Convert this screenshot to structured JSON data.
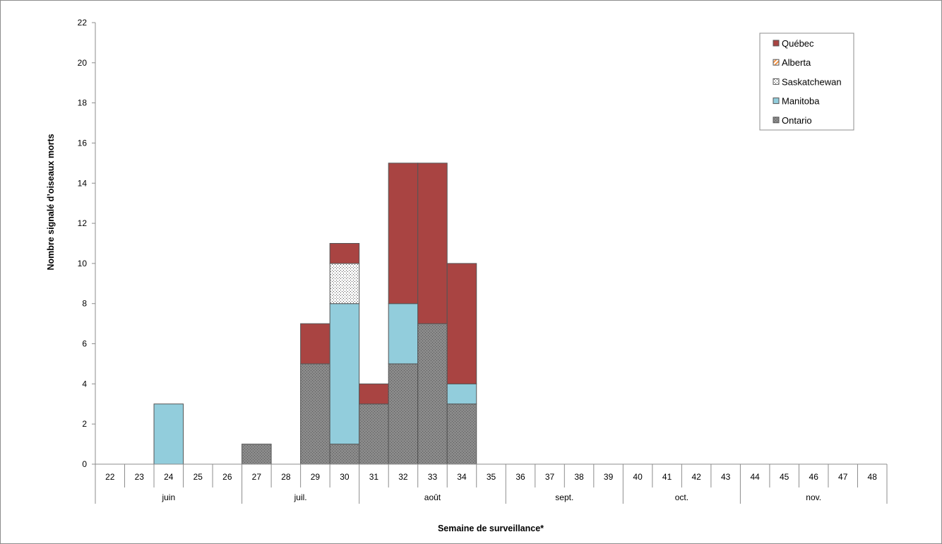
{
  "chart_data": {
    "type": "bar",
    "stacked": true,
    "ylabel": "Nombre signalé d’oiseaux morts",
    "xlabel": "Semaine de surveillance*",
    "ylim": [
      0,
      22
    ],
    "yticks": [
      0,
      2,
      4,
      6,
      8,
      10,
      12,
      14,
      16,
      18,
      20,
      22
    ],
    "grid": false,
    "legend_position": "top-right",
    "categories": [
      "22",
      "23",
      "24",
      "25",
      "26",
      "27",
      "28",
      "29",
      "30",
      "31",
      "32",
      "33",
      "34",
      "35",
      "36",
      "37",
      "38",
      "39",
      "40",
      "41",
      "42",
      "43",
      "44",
      "45",
      "46",
      "47",
      "48"
    ],
    "month_groups": [
      {
        "label": "juin",
        "weeks": [
          "22",
          "23",
          "24",
          "25",
          "26"
        ]
      },
      {
        "label": "juil.",
        "weeks": [
          "27",
          "28",
          "29",
          "30"
        ]
      },
      {
        "label": "août",
        "weeks": [
          "31",
          "32",
          "33",
          "34",
          "35"
        ]
      },
      {
        "label": "sept.",
        "weeks": [
          "36",
          "37",
          "38",
          "39"
        ]
      },
      {
        "label": "oct.",
        "weeks": [
          "40",
          "41",
          "42",
          "43"
        ]
      },
      {
        "label": "nov.",
        "weeks": [
          "44",
          "45",
          "46",
          "47",
          "48"
        ]
      }
    ],
    "series": [
      {
        "name": "Ontario",
        "color": "#8a8a8a",
        "pattern": "dots-dark",
        "values": [
          0,
          0,
          0,
          0,
          0,
          1,
          0,
          5,
          1,
          3,
          5,
          7,
          3,
          0,
          0,
          0,
          0,
          0,
          0,
          0,
          0,
          0,
          0,
          0,
          0,
          0,
          0
        ]
      },
      {
        "name": "Manitoba",
        "color": "#92cddc",
        "pattern": "solid",
        "values": [
          0,
          0,
          3,
          0,
          0,
          0,
          0,
          0,
          7,
          0,
          3,
          0,
          1,
          0,
          0,
          0,
          0,
          0,
          0,
          0,
          0,
          0,
          0,
          0,
          0,
          0,
          0
        ]
      },
      {
        "name": "Saskatchewan",
        "color": "#ffffff",
        "pattern": "dots-light",
        "values": [
          0,
          0,
          0,
          0,
          0,
          0,
          0,
          0,
          2,
          0,
          0,
          0,
          0,
          0,
          0,
          0,
          0,
          0,
          0,
          0,
          0,
          0,
          0,
          0,
          0,
          0,
          0
        ]
      },
      {
        "name": "Alberta",
        "color": "#f79646",
        "pattern": "hatch",
        "values": [
          0,
          0,
          0,
          0,
          0,
          0,
          0,
          0,
          0,
          0,
          0,
          0,
          0,
          0,
          0,
          0,
          0,
          0,
          0,
          0,
          0,
          0,
          0,
          0,
          0,
          0,
          0
        ]
      },
      {
        "name": "Québec",
        "color": "#a94442",
        "pattern": "solid",
        "values": [
          0,
          0,
          0,
          0,
          0,
          0,
          0,
          2,
          1,
          1,
          7,
          8,
          6,
          0,
          0,
          0,
          0,
          0,
          0,
          0,
          0,
          0,
          0,
          0,
          0,
          0,
          0
        ]
      }
    ],
    "legend_order": [
      "Québec",
      "Alberta",
      "Saskatchewan",
      "Manitoba",
      "Ontario"
    ]
  }
}
